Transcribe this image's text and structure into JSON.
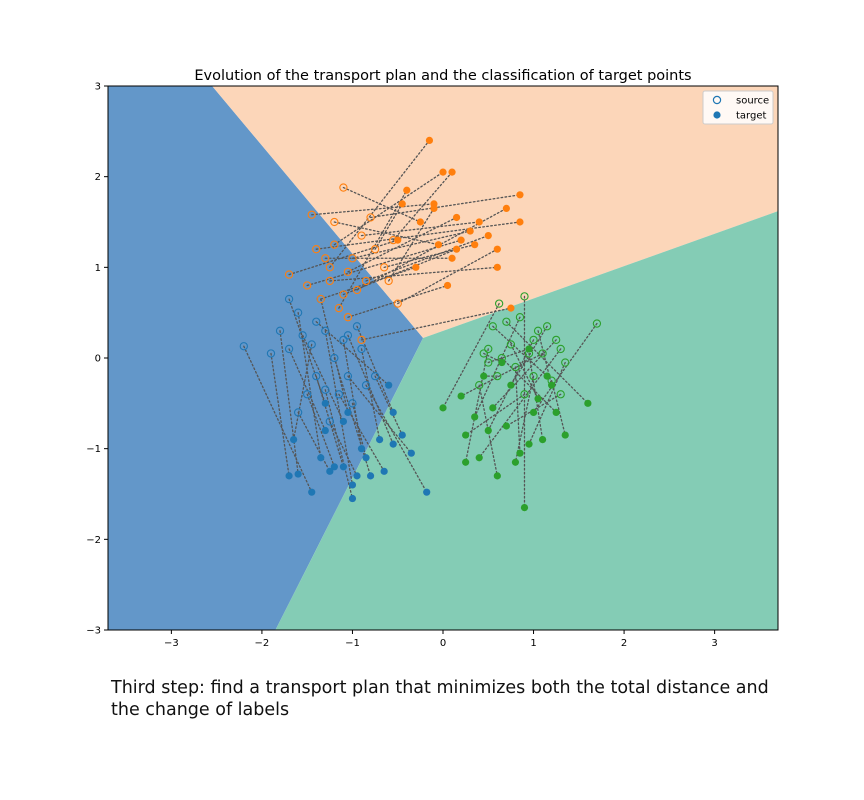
{
  "chart_data": {
    "type": "scatter",
    "title": "Evolution of the transport plan and the classification of target points",
    "xlim": [
      -3.7,
      3.7
    ],
    "ylim": [
      -3,
      3
    ],
    "xticks": [
      -3,
      -2,
      -1,
      0,
      1,
      2,
      3
    ],
    "yticks": [
      -3,
      -2,
      -1,
      0,
      1,
      2,
      3
    ],
    "xtick_labels": [
      "−3",
      "−2",
      "−1",
      "0",
      "1",
      "2",
      "3"
    ],
    "ytick_labels": [
      "−3",
      "−2",
      "−1",
      "0",
      "1",
      "2",
      "3"
    ],
    "grid": false,
    "legend": {
      "placement": "upper right",
      "entries": [
        {
          "label": "source",
          "marker": "hollow-circle",
          "color": "#1f77b4"
        },
        {
          "label": "target",
          "marker": "filled-circle",
          "color": "#1f77b4"
        }
      ]
    },
    "decision_regions": {
      "center": [
        -0.22,
        0.22
      ],
      "boundaries": [
        {
          "between": [
            "blue",
            "orange"
          ],
          "to": [
            -2.55,
            3.0
          ]
        },
        {
          "between": [
            "orange",
            "green"
          ],
          "to": [
            3.7,
            1.62
          ]
        },
        {
          "between": [
            "blue",
            "green"
          ],
          "to": [
            -1.85,
            -3.0
          ]
        }
      ],
      "colors": {
        "blue": "#6397c9",
        "orange": "#fcd6b9",
        "green": "#84ccb5"
      }
    },
    "series": [
      {
        "class": "blue",
        "color": "#1f77b4",
        "pairs": [
          [
            [
              -1.4,
              -0.2
            ],
            [
              -1.1,
              -1.2
            ]
          ],
          [
            [
              -1.1,
              0.2
            ],
            [
              -0.9,
              -1.0
            ]
          ],
          [
            [
              -1.6,
              0.5
            ],
            [
              -1.35,
              -1.1
            ]
          ],
          [
            [
              -1.2,
              0.0
            ],
            [
              -0.8,
              -1.3
            ]
          ],
          [
            [
              -1.7,
              0.1
            ],
            [
              -1.3,
              -0.8
            ]
          ],
          [
            [
              -1.3,
              0.3
            ],
            [
              -1.0,
              -1.4
            ]
          ],
          [
            [
              -1.5,
              -0.4
            ],
            [
              -1.2,
              -1.2
            ]
          ],
          [
            [
              -0.9,
              0.1
            ],
            [
              -0.7,
              -0.9
            ]
          ],
          [
            [
              -1.0,
              -0.5
            ],
            [
              -0.85,
              -1.1
            ]
          ],
          [
            [
              -1.35,
              0.65
            ],
            [
              -1.05,
              -0.6
            ]
          ],
          [
            [
              -2.2,
              0.13
            ],
            [
              -1.45,
              -1.48
            ]
          ],
          [
            [
              -1.6,
              -0.6
            ],
            [
              -1.25,
              -1.25
            ]
          ],
          [
            [
              -0.75,
              -0.2
            ],
            [
              -0.45,
              -0.85
            ]
          ],
          [
            [
              -1.8,
              0.3
            ],
            [
              -1.6,
              -1.28
            ]
          ],
          [
            [
              -1.05,
              0.25
            ],
            [
              -0.55,
              -0.95
            ]
          ],
          [
            [
              -1.25,
              -0.7
            ],
            [
              -0.95,
              -1.3
            ]
          ],
          [
            [
              -0.85,
              -0.3
            ],
            [
              -0.18,
              -1.48
            ]
          ],
          [
            [
              -1.45,
              0.15
            ],
            [
              -1.65,
              -0.9
            ]
          ],
          [
            [
              -1.15,
              -0.4
            ],
            [
              -0.65,
              -1.25
            ]
          ],
          [
            [
              -1.7,
              0.65
            ],
            [
              -1.3,
              -0.5
            ]
          ],
          [
            [
              -1.55,
              0.25
            ],
            [
              -1.1,
              -0.7
            ]
          ],
          [
            [
              -0.95,
              0.35
            ],
            [
              -0.55,
              -0.6
            ]
          ],
          [
            [
              -1.3,
              -0.35
            ],
            [
              -1.0,
              -1.55
            ]
          ],
          [
            [
              -1.9,
              0.05
            ],
            [
              -1.7,
              -1.3
            ]
          ],
          [
            [
              -1.05,
              -0.2
            ],
            [
              -0.35,
              -1.05
            ]
          ],
          [
            [
              -1.4,
              0.4
            ],
            [
              -0.6,
              -0.3
            ]
          ]
        ]
      },
      {
        "class": "orange",
        "color": "#ff7f0e",
        "pairs": [
          [
            [
              -1.1,
              1.88
            ],
            [
              -0.25,
              1.5
            ]
          ],
          [
            [
              -1.45,
              1.58
            ],
            [
              -0.1,
              1.7
            ]
          ],
          [
            [
              -1.2,
              1.25
            ],
            [
              0.0,
              2.05
            ]
          ],
          [
            [
              -1.7,
              0.92
            ],
            [
              -0.5,
              1.3
            ]
          ],
          [
            [
              -1.0,
              1.1
            ],
            [
              0.3,
              1.4
            ]
          ],
          [
            [
              -1.35,
              0.65
            ],
            [
              -0.3,
              1.0
            ]
          ],
          [
            [
              -1.1,
              0.7
            ],
            [
              0.15,
              1.2
            ]
          ],
          [
            [
              -0.9,
              1.35
            ],
            [
              0.4,
              1.5
            ]
          ],
          [
            [
              -1.25,
              1.0
            ],
            [
              -0.15,
              2.4
            ]
          ],
          [
            [
              -0.8,
              1.55
            ],
            [
              0.85,
              1.8
            ]
          ],
          [
            [
              -1.05,
              0.45
            ],
            [
              0.05,
              0.8
            ]
          ],
          [
            [
              -0.5,
              0.6
            ],
            [
              0.6,
              1.2
            ]
          ],
          [
            [
              -1.3,
              1.1
            ],
            [
              0.1,
              1.1
            ]
          ],
          [
            [
              -0.85,
              0.85
            ],
            [
              0.5,
              1.35
            ]
          ],
          [
            [
              -1.15,
              0.55
            ],
            [
              -0.4,
              1.85
            ]
          ],
          [
            [
              -1.5,
              0.8
            ],
            [
              0.2,
              1.3
            ]
          ],
          [
            [
              -0.95,
              0.75
            ],
            [
              0.7,
              1.65
            ]
          ],
          [
            [
              -1.2,
              1.5
            ],
            [
              -0.05,
              1.25
            ]
          ],
          [
            [
              -0.65,
              1.0
            ],
            [
              0.35,
              1.25
            ]
          ],
          [
            [
              -1.4,
              1.2
            ],
            [
              0.85,
              1.5
            ]
          ],
          [
            [
              -0.9,
              0.2
            ],
            [
              0.75,
              0.55
            ]
          ],
          [
            [
              -0.75,
              1.2
            ],
            [
              -0.45,
              1.7
            ]
          ],
          [
            [
              -1.05,
              0.95
            ],
            [
              0.15,
              1.55
            ]
          ],
          [
            [
              -0.6,
              0.85
            ],
            [
              -0.1,
              1.65
            ]
          ],
          [
            [
              -1.25,
              0.85
            ],
            [
              0.6,
              1.0
            ]
          ],
          [
            [
              -0.55,
              1.3
            ],
            [
              0.1,
              2.05
            ]
          ]
        ]
      },
      {
        "class": "green",
        "color": "#2ca02c",
        "pairs": [
          [
            [
              0.62,
              0.6
            ],
            [
              0.0,
              -0.55
            ]
          ],
          [
            [
              0.9,
              0.68
            ],
            [
              0.9,
              -1.65
            ]
          ],
          [
            [
              1.7,
              0.38
            ],
            [
              1.0,
              -0.6
            ]
          ],
          [
            [
              0.5,
              0.1
            ],
            [
              0.25,
              -1.15
            ]
          ],
          [
            [
              1.1,
              0.05
            ],
            [
              0.2,
              -0.42
            ]
          ],
          [
            [
              0.7,
              0.4
            ],
            [
              1.6,
              -0.5
            ]
          ],
          [
            [
              1.2,
              -0.25
            ],
            [
              1.35,
              -0.85
            ]
          ],
          [
            [
              0.4,
              -0.3
            ],
            [
              0.6,
              -1.3
            ]
          ],
          [
            [
              1.0,
              0.2
            ],
            [
              0.5,
              -0.8
            ]
          ],
          [
            [
              0.8,
              -0.1
            ],
            [
              0.85,
              -1.05
            ]
          ],
          [
            [
              1.3,
              0.1
            ],
            [
              0.4,
              -1.1
            ]
          ],
          [
            [
              0.55,
              0.35
            ],
            [
              1.15,
              -0.2
            ]
          ],
          [
            [
              0.9,
              -0.4
            ],
            [
              0.25,
              -0.85
            ]
          ],
          [
            [
              1.15,
              0.35
            ],
            [
              0.75,
              -0.3
            ]
          ],
          [
            [
              0.65,
              0.0
            ],
            [
              1.25,
              -0.6
            ]
          ],
          [
            [
              1.35,
              -0.05
            ],
            [
              0.95,
              -0.95
            ]
          ],
          [
            [
              0.45,
              0.05
            ],
            [
              0.65,
              -0.05
            ]
          ],
          [
            [
              1.0,
              -0.2
            ],
            [
              0.8,
              -1.15
            ]
          ],
          [
            [
              0.75,
              0.15
            ],
            [
              1.05,
              -0.45
            ]
          ],
          [
            [
              1.25,
              0.2
            ],
            [
              0.55,
              -0.55
            ]
          ],
          [
            [
              0.6,
              -0.2
            ],
            [
              0.45,
              -0.2
            ]
          ],
          [
            [
              1.05,
              0.3
            ],
            [
              1.2,
              -0.3
            ]
          ],
          [
            [
              0.85,
              0.45
            ],
            [
              0.35,
              -0.65
            ]
          ],
          [
            [
              1.3,
              -0.4
            ],
            [
              0.7,
              -0.75
            ]
          ],
          [
            [
              0.5,
              -0.05
            ],
            [
              0.95,
              0.1
            ]
          ],
          [
            [
              0.95,
              0.05
            ],
            [
              1.1,
              -0.9
            ]
          ]
        ]
      }
    ]
  },
  "caption": "Third step: find a transport plan that minimizes both the total distance and the change of labels"
}
